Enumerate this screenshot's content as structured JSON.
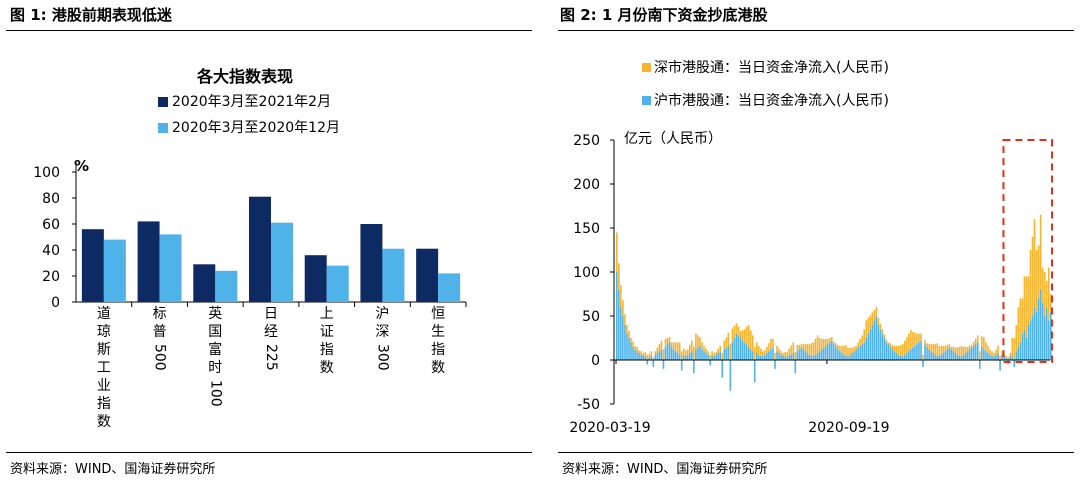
{
  "left": {
    "figure_title": "图 1:  港股前期表现低迷",
    "source": "资料来源：WIND、国海证券研究所"
  },
  "right": {
    "figure_title": "图 2:  1 月份南下资金抄底港股",
    "source": "资料来源：WIND、国海证券研究所"
  },
  "chart_data": [
    {
      "type": "bar",
      "title": "各大指数表现",
      "ylabel": "%",
      "ylim": [
        0,
        100
      ],
      "yticks": [
        0,
        20,
        40,
        60,
        80,
        100
      ],
      "categories": [
        "道琼斯工业指数",
        "标普500",
        "英国富时100",
        "日经225",
        "上证指数",
        "沪深300",
        "恒生指数"
      ],
      "series": [
        {
          "name": "2020年3月至2021年2月",
          "color": "#0d2a63",
          "values": [
            56,
            62,
            29,
            81,
            36,
            60,
            41
          ]
        },
        {
          "name": "2020年3月至2020年12月",
          "color": "#4fb3ea",
          "values": [
            48,
            52,
            24,
            61,
            28,
            41,
            22
          ]
        }
      ]
    },
    {
      "type": "bar",
      "stacked": true,
      "ylabel": "亿元（人民币）",
      "ylim": [
        -50,
        250
      ],
      "yticks": [
        -50,
        0,
        50,
        100,
        150,
        200,
        250
      ],
      "x_tick_labels": [
        "2020-03-19",
        "2020-09-19"
      ],
      "x_range": [
        "2020-03-19",
        "2021-01-29"
      ],
      "approximate_trading_days": 215,
      "highlight": {
        "from_day": 195,
        "to_day": 215,
        "note": "2021年1月"
      },
      "series": [
        {
          "name": "深市港股通：当日资金净流入(人民币)",
          "color": "#f5b533",
          "values": [
            45,
            30,
            25,
            18,
            12,
            10,
            8,
            5,
            6,
            4,
            5,
            3,
            4,
            3,
            5,
            6,
            4,
            5,
            3,
            4,
            6,
            8,
            10,
            12,
            9,
            7,
            6,
            5,
            8,
            10,
            12,
            14,
            10,
            8,
            7,
            6,
            9,
            12,
            15,
            18,
            14,
            10,
            8,
            6,
            5,
            4,
            6,
            5,
            4,
            3,
            5,
            6,
            8,
            10,
            12,
            15,
            18,
            16,
            14,
            12,
            10,
            8,
            12,
            15,
            20,
            25,
            22,
            18,
            15,
            12,
            10,
            8,
            6,
            5,
            7,
            9,
            12,
            10,
            8,
            6,
            5,
            4,
            3,
            5,
            6,
            8,
            10,
            12,
            9,
            7,
            5,
            4,
            6,
            8,
            10,
            12,
            14,
            16,
            18,
            20,
            15,
            12,
            10,
            8,
            6,
            5,
            4,
            3,
            4,
            5,
            6,
            8,
            10,
            12,
            10,
            8,
            6,
            5,
            4,
            6,
            8,
            10,
            15,
            20,
            18,
            16,
            14,
            12,
            10,
            8,
            6,
            5,
            4,
            3,
            2,
            4,
            5,
            6,
            8,
            10,
            12,
            14,
            16,
            18,
            20,
            22,
            18,
            15,
            12,
            10,
            8,
            6,
            5,
            4,
            6,
            8,
            10,
            12,
            14,
            12,
            10,
            8,
            6,
            5,
            4,
            3,
            5,
            6,
            8,
            10,
            12,
            9,
            7,
            5,
            4,
            3,
            5,
            6,
            8,
            10,
            12,
            14,
            10,
            8,
            6,
            5,
            4,
            6,
            8,
            5,
            4,
            3,
            2,
            3,
            4,
            20,
            25,
            30,
            45,
            50,
            40,
            60,
            70,
            55,
            80,
            90,
            100,
            70,
            60,
            85,
            40,
            50,
            30,
            60,
            20
          ]
        },
        {
          "name": "沪市港股通：当日资金净流入(人民币)",
          "color": "#4fb3ea",
          "values": [
            100,
            80,
            60,
            50,
            40,
            30,
            25,
            20,
            15,
            12,
            10,
            8,
            6,
            5,
            4,
            -5,
            3,
            5,
            -8,
            6,
            8,
            10,
            12,
            -10,
            15,
            18,
            20,
            15,
            12,
            10,
            8,
            6,
            -12,
            5,
            4,
            6,
            8,
            10,
            -15,
            12,
            14,
            16,
            12,
            10,
            8,
            6,
            -6,
            5,
            4,
            6,
            8,
            10,
            -20,
            12,
            14,
            16,
            -35,
            20,
            25,
            30,
            28,
            25,
            22,
            20,
            18,
            15,
            12,
            10,
            -25,
            8,
            6,
            5,
            4,
            6,
            8,
            10,
            12,
            14,
            -10,
            10,
            8,
            6,
            5,
            4,
            3,
            5,
            6,
            8,
            -15,
            10,
            12,
            14,
            12,
            10,
            8,
            6,
            5,
            4,
            6,
            8,
            10,
            12,
            14,
            16,
            18,
            20,
            22,
            18,
            15,
            12,
            10,
            8,
            6,
            5,
            4,
            6,
            8,
            10,
            12,
            14,
            16,
            18,
            20,
            25,
            30,
            35,
            40,
            45,
            50,
            40,
            35,
            30,
            25,
            20,
            18,
            15,
            12,
            10,
            8,
            6,
            5,
            4,
            6,
            8,
            10,
            12,
            14,
            16,
            18,
            20,
            22,
            -8,
            18,
            15,
            12,
            10,
            8,
            6,
            5,
            4,
            6,
            8,
            10,
            12,
            14,
            12,
            10,
            8,
            6,
            5,
            4,
            6,
            8,
            10,
            12,
            14,
            16,
            18,
            20,
            -10,
            15,
            12,
            10,
            8,
            6,
            5,
            4,
            6,
            8,
            -12,
            6,
            4,
            3,
            -5,
            4,
            5,
            -8,
            10,
            15,
            20,
            30,
            35,
            25,
            40,
            45,
            50,
            60,
            55,
            70,
            80,
            65,
            50,
            60,
            45,
            55,
            35,
            40,
            25,
            30,
            15
          ]
        }
      ]
    }
  ]
}
